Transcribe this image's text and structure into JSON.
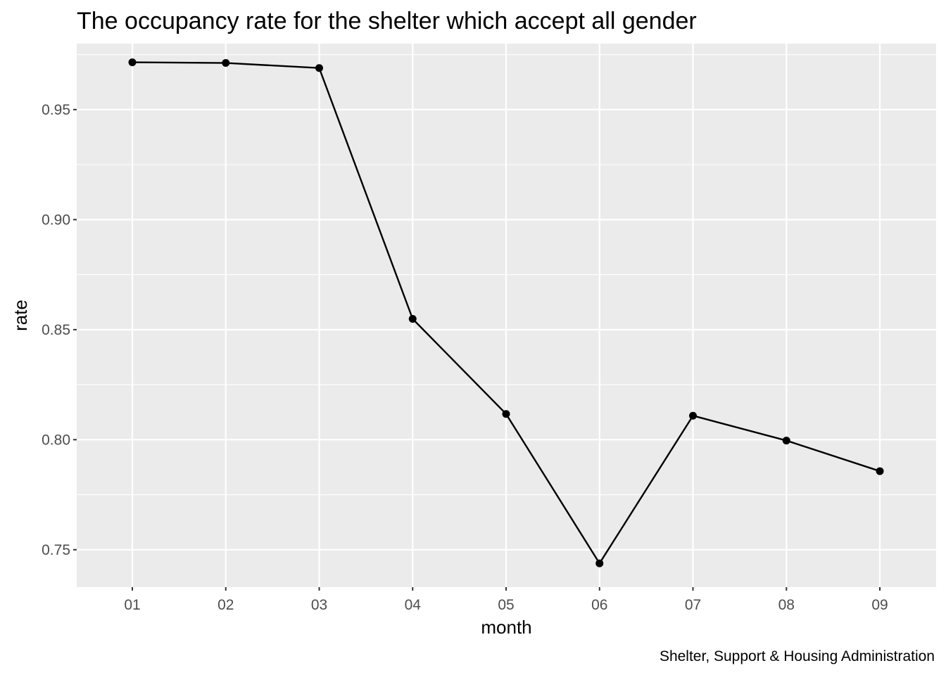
{
  "chart_data": {
    "type": "line",
    "title": "The occupancy rate for the shelter which accept all gender",
    "xlabel": "month",
    "ylabel": "rate",
    "caption": "Shelter, Support & Housing Administration",
    "categories": [
      "01",
      "02",
      "03",
      "04",
      "05",
      "06",
      "07",
      "08",
      "09"
    ],
    "series": [
      {
        "values": [
          0.9715,
          0.9712,
          0.9689,
          0.8549,
          0.8117,
          0.7438,
          0.8109,
          0.7996,
          0.7857
        ]
      }
    ],
    "ylim": [
      0.733,
      0.98
    ],
    "y_ticks": [
      {
        "value": 0.75,
        "label": "0.75"
      },
      {
        "value": 0.8,
        "label": "0.80"
      },
      {
        "value": 0.85,
        "label": "0.85"
      },
      {
        "value": 0.9,
        "label": "0.90"
      },
      {
        "value": 0.95,
        "label": "0.95"
      }
    ],
    "y_minor_ticks": [
      0.775,
      0.825,
      0.875,
      0.925,
      0.975
    ],
    "grid": true,
    "legend": "none",
    "colors": {
      "panel_background": "#ebebeb",
      "grid_line": "#ffffff",
      "series_line": "#000000",
      "point": "#000000",
      "tick_mark": "#333333",
      "tick_label": "#4d4d4d"
    }
  }
}
